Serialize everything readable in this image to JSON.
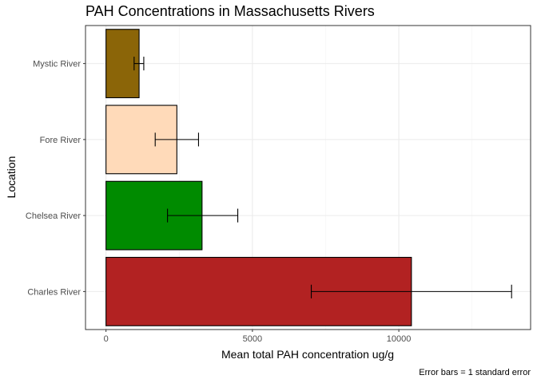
{
  "chart_data": {
    "type": "bar",
    "orientation": "horizontal",
    "title": "PAH Concentrations in Massachusetts Rivers",
    "xlabel": "Mean total PAH concentration ug/g",
    "ylabel": "Location",
    "caption": "Error bars = 1 standard error",
    "xlim": [
      -700,
      14500
    ],
    "x_ticks": [
      0,
      5000,
      10000
    ],
    "x_tick_labels": [
      "0",
      "5000",
      "10000"
    ],
    "grid": true,
    "categories": [
      "Mystic River",
      "Fore River",
      "Chelsea River",
      "Charles River"
    ],
    "values": [
      1130,
      2420,
      3280,
      10430
    ],
    "error_low": [
      960,
      1680,
      2100,
      7010
    ],
    "error_high": [
      1290,
      3160,
      4500,
      13850
    ],
    "colors": [
      "#8b6508",
      "#ffdab9",
      "#008b00",
      "#b22222"
    ]
  }
}
